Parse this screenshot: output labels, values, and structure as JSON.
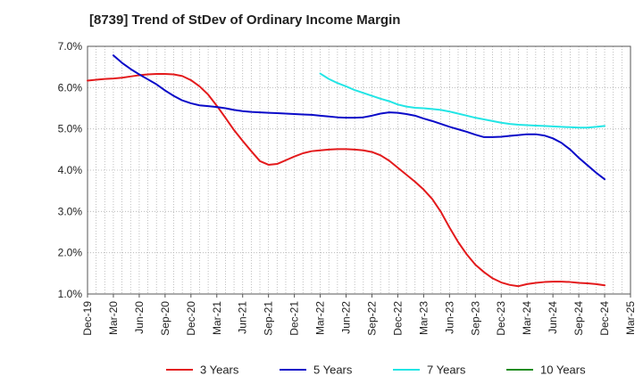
{
  "chart_data": {
    "type": "line",
    "title": "[8739]  Trend of StDev of Ordinary Income Margin",
    "xlabel": "",
    "ylabel": "",
    "x_tick_labels": [
      "Dec-19",
      "Mar-20",
      "Jun-20",
      "Sep-20",
      "Dec-20",
      "Mar-21",
      "Jun-21",
      "Sep-21",
      "Dec-21",
      "Mar-22",
      "Jun-22",
      "Sep-22",
      "Dec-22",
      "Mar-23",
      "Jun-23",
      "Sep-23",
      "Dec-23",
      "Mar-24",
      "Jun-24",
      "Sep-24",
      "Dec-24",
      "Mar-25"
    ],
    "y_tick_labels": [
      "1.0%",
      "2.0%",
      "3.0%",
      "4.0%",
      "5.0%",
      "6.0%",
      "7.0%"
    ],
    "ylim": [
      1.0,
      7.0
    ],
    "y_unit": "%",
    "grid": true,
    "legend_position": "bottom",
    "series": [
      {
        "name": "3 Years",
        "color": "#e31a1c",
        "x": [
          "Dec-19",
          "Jan-20",
          "Feb-20",
          "Mar-20",
          "Apr-20",
          "May-20",
          "Jun-20",
          "Jul-20",
          "Aug-20",
          "Sep-20",
          "Oct-20",
          "Nov-20",
          "Dec-20",
          "Jan-21",
          "Feb-21",
          "Mar-21",
          "Apr-21",
          "May-21",
          "Jun-21",
          "Jul-21",
          "Aug-21",
          "Sep-21",
          "Oct-21",
          "Nov-21",
          "Dec-21",
          "Jan-22",
          "Feb-22",
          "Mar-22",
          "Apr-22",
          "May-22",
          "Jun-22",
          "Jul-22",
          "Aug-22",
          "Sep-22",
          "Oct-22",
          "Nov-22",
          "Dec-22",
          "Jan-23",
          "Feb-23",
          "Mar-23",
          "Apr-23",
          "May-23",
          "Jun-23",
          "Jul-23",
          "Aug-23",
          "Sep-23",
          "Oct-23",
          "Nov-23",
          "Dec-23",
          "Jan-24",
          "Feb-24",
          "Mar-24",
          "Apr-24",
          "May-24",
          "Jun-24",
          "Jul-24",
          "Aug-24",
          "Sep-24",
          "Oct-24",
          "Nov-24",
          "Dec-24"
        ],
        "values": [
          6.17,
          6.19,
          6.21,
          6.22,
          6.24,
          6.27,
          6.3,
          6.32,
          6.33,
          6.33,
          6.32,
          6.28,
          6.18,
          6.03,
          5.83,
          5.56,
          5.27,
          4.97,
          4.71,
          4.46,
          4.22,
          4.13,
          4.15,
          4.24,
          4.33,
          4.41,
          4.46,
          4.48,
          4.5,
          4.51,
          4.51,
          4.5,
          4.48,
          4.44,
          4.36,
          4.23,
          4.06,
          3.89,
          3.72,
          3.53,
          3.3,
          2.99,
          2.61,
          2.26,
          1.96,
          1.71,
          1.53,
          1.38,
          1.28,
          1.22,
          1.19,
          1.24,
          1.27,
          1.29,
          1.3,
          1.3,
          1.29,
          1.27,
          1.26,
          1.24,
          1.21
        ]
      },
      {
        "name": "5 Years",
        "color": "#0a0ac8",
        "x": [
          "Mar-20",
          "Apr-20",
          "May-20",
          "Jun-20",
          "Jul-20",
          "Aug-20",
          "Sep-20",
          "Oct-20",
          "Nov-20",
          "Dec-20",
          "Jan-21",
          "Feb-21",
          "Mar-21",
          "Apr-21",
          "May-21",
          "Jun-21",
          "Jul-21",
          "Aug-21",
          "Sep-21",
          "Oct-21",
          "Nov-21",
          "Dec-21",
          "Jan-22",
          "Feb-22",
          "Mar-22",
          "Apr-22",
          "May-22",
          "Jun-22",
          "Jul-22",
          "Aug-22",
          "Sep-22",
          "Oct-22",
          "Nov-22",
          "Dec-22",
          "Jan-23",
          "Feb-23",
          "Mar-23",
          "Apr-23",
          "May-23",
          "Jun-23",
          "Jul-23",
          "Aug-23",
          "Sep-23",
          "Oct-23",
          "Nov-23",
          "Dec-23",
          "Jan-24",
          "Feb-24",
          "Mar-24",
          "Apr-24",
          "May-24",
          "Jun-24",
          "Jul-24",
          "Aug-24",
          "Sep-24",
          "Oct-24",
          "Nov-24",
          "Dec-24"
        ],
        "values": [
          6.78,
          6.6,
          6.45,
          6.32,
          6.2,
          6.08,
          5.93,
          5.8,
          5.69,
          5.62,
          5.57,
          5.55,
          5.53,
          5.5,
          5.46,
          5.43,
          5.41,
          5.4,
          5.39,
          5.38,
          5.37,
          5.36,
          5.35,
          5.34,
          5.32,
          5.3,
          5.28,
          5.27,
          5.27,
          5.28,
          5.32,
          5.37,
          5.4,
          5.39,
          5.36,
          5.32,
          5.25,
          5.19,
          5.12,
          5.05,
          4.99,
          4.93,
          4.86,
          4.8,
          4.8,
          4.81,
          4.83,
          4.85,
          4.87,
          4.87,
          4.84,
          4.77,
          4.66,
          4.5,
          4.3,
          4.12,
          3.94,
          3.78
        ]
      },
      {
        "name": "7 Years",
        "color": "#22e5e5",
        "x": [
          "Mar-22",
          "Apr-22",
          "May-22",
          "Jun-22",
          "Jul-22",
          "Aug-22",
          "Sep-22",
          "Oct-22",
          "Nov-22",
          "Dec-22",
          "Jan-23",
          "Feb-23",
          "Mar-23",
          "Apr-23",
          "May-23",
          "Jun-23",
          "Jul-23",
          "Aug-23",
          "Sep-23",
          "Oct-23",
          "Nov-23",
          "Dec-23",
          "Jan-24",
          "Feb-24",
          "Mar-24",
          "Apr-24",
          "May-24",
          "Jun-24",
          "Jul-24",
          "Aug-24",
          "Sep-24",
          "Oct-24",
          "Nov-24",
          "Dec-24"
        ],
        "values": [
          6.34,
          6.21,
          6.11,
          6.03,
          5.94,
          5.87,
          5.8,
          5.73,
          5.67,
          5.59,
          5.54,
          5.51,
          5.5,
          5.48,
          5.46,
          5.42,
          5.37,
          5.32,
          5.27,
          5.23,
          5.19,
          5.15,
          5.12,
          5.1,
          5.09,
          5.08,
          5.07,
          5.06,
          5.05,
          5.04,
          5.03,
          5.03,
          5.05,
          5.07
        ]
      },
      {
        "name": "10 Years",
        "color": "#1f8c1f",
        "x": [],
        "values": []
      }
    ]
  }
}
